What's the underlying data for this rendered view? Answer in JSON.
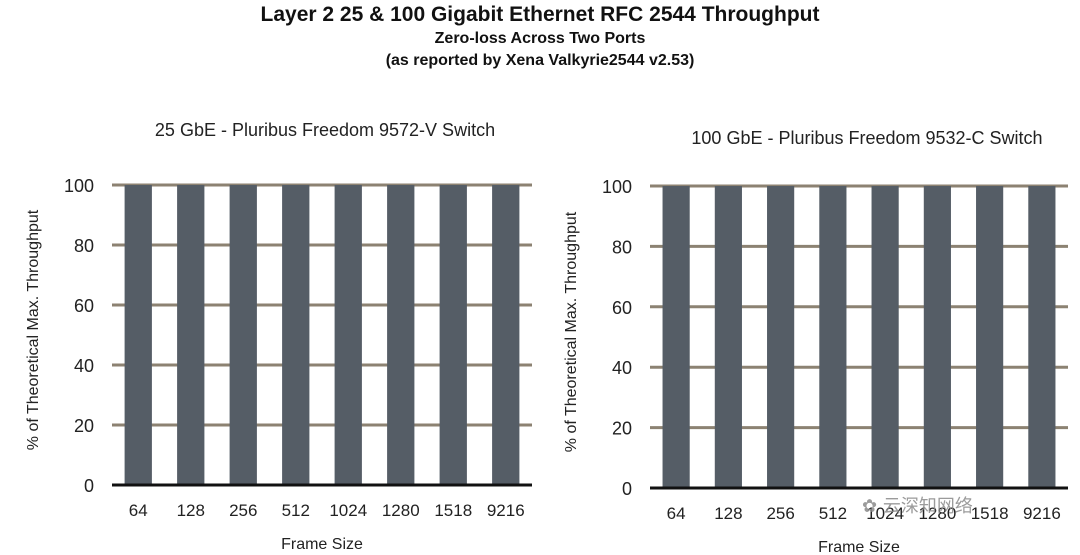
{
  "header": {
    "title": "Layer 2 25 & 100 Gigabit Ethernet RFC 2544 Throughput",
    "subtitle1": "Zero-loss Across Two Ports",
    "subtitle2": "(as reported by Xena Valkyrie2544  v2.53)"
  },
  "colors": {
    "bar": "#555d66",
    "grid": "#8c8272",
    "axis": "#111111",
    "text": "#222222"
  },
  "chart_data": [
    {
      "type": "bar",
      "title": "25 GbE - Pluribus Freedom 9572-V Switch",
      "xlabel": "Frame Size",
      "ylabel": "% of Theoretical Max. Throughput",
      "categories": [
        "64",
        "128",
        "256",
        "512",
        "1024",
        "1280",
        "1518",
        "9216"
      ],
      "values": [
        100,
        100,
        100,
        100,
        100,
        100,
        100,
        100
      ],
      "ylim": [
        0,
        100
      ],
      "yticks": [
        0,
        20,
        40,
        60,
        80,
        100
      ],
      "grid": true,
      "legend": "none"
    },
    {
      "type": "bar",
      "title": "100 GbE - Pluribus Freedom 9532-C Switch",
      "xlabel": "Frame Size",
      "ylabel": "% of Theoretical Max. Throughput",
      "categories": [
        "64",
        "128",
        "256",
        "512",
        "1024",
        "1280",
        "1518",
        "9216"
      ],
      "values": [
        100,
        100,
        100,
        100,
        100,
        100,
        100,
        100
      ],
      "ylim": [
        0,
        100
      ],
      "yticks": [
        0,
        20,
        40,
        60,
        80,
        100
      ],
      "grid": true,
      "legend": "none"
    }
  ],
  "watermark": {
    "text": "云深知网络"
  }
}
